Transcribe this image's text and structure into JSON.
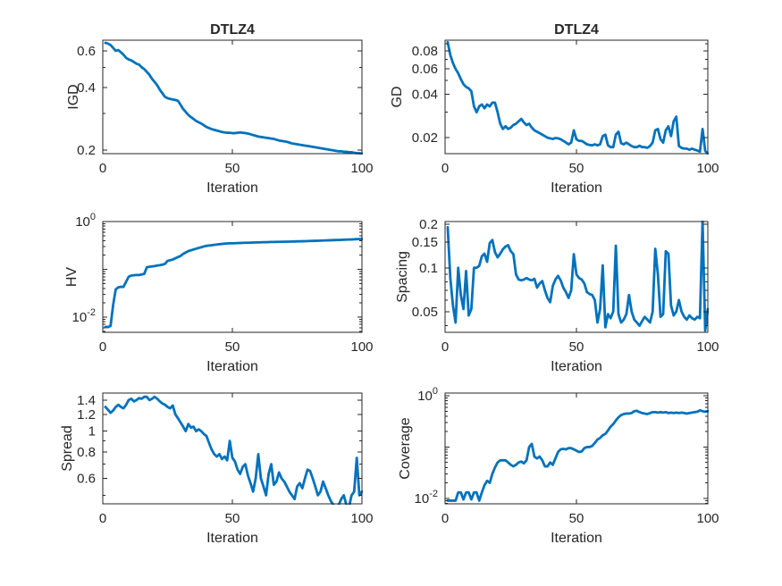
{
  "figure": {
    "background": "#ffffff",
    "line_color": "#0072BD",
    "axis_color": "#262626",
    "text_color": "#262626"
  },
  "iterations": [
    1,
    2,
    3,
    4,
    5,
    6,
    7,
    8,
    9,
    10,
    11,
    12,
    13,
    14,
    15,
    16,
    17,
    18,
    19,
    20,
    21,
    22,
    23,
    24,
    25,
    26,
    27,
    28,
    29,
    30,
    31,
    32,
    33,
    34,
    35,
    36,
    37,
    38,
    39,
    40,
    41,
    42,
    43,
    44,
    45,
    46,
    47,
    48,
    49,
    50,
    51,
    52,
    53,
    54,
    55,
    56,
    57,
    58,
    59,
    60,
    61,
    62,
    63,
    64,
    65,
    66,
    67,
    68,
    69,
    70,
    71,
    72,
    73,
    74,
    75,
    76,
    77,
    78,
    79,
    80,
    81,
    82,
    83,
    84,
    85,
    86,
    87,
    88,
    89,
    90,
    91,
    92,
    93,
    94,
    95,
    96,
    97,
    98,
    99,
    100
  ],
  "chart_data": [
    {
      "type": "line",
      "title": "DTLZ4",
      "xlabel": "Iteration",
      "ylabel": "IGD",
      "xlim": [
        0,
        100
      ],
      "ylim": [
        0.192,
        0.675
      ],
      "yscale": "log",
      "grid": false,
      "xticks": [
        0,
        50,
        100
      ],
      "yticks": [
        0.2,
        0.4,
        0.6
      ],
      "ytick_labels": [
        "0.2",
        "0.4",
        "0.6"
      ],
      "y": [
        0.655,
        0.65,
        0.64,
        0.62,
        0.6,
        0.605,
        0.59,
        0.575,
        0.555,
        0.545,
        0.54,
        0.53,
        0.52,
        0.515,
        0.5,
        0.49,
        0.475,
        0.46,
        0.44,
        0.425,
        0.41,
        0.39,
        0.375,
        0.36,
        0.355,
        0.352,
        0.35,
        0.348,
        0.345,
        0.33,
        0.315,
        0.305,
        0.295,
        0.288,
        0.282,
        0.276,
        0.272,
        0.268,
        0.263,
        0.258,
        0.255,
        0.252,
        0.25,
        0.248,
        0.246,
        0.244,
        0.243,
        0.242,
        0.242,
        0.241,
        0.241,
        0.242,
        0.243,
        0.242,
        0.241,
        0.24,
        0.238,
        0.236,
        0.234,
        0.232,
        0.231,
        0.23,
        0.229,
        0.228,
        0.227,
        0.226,
        0.224,
        0.222,
        0.221,
        0.22,
        0.219,
        0.217,
        0.215,
        0.214,
        0.213,
        0.212,
        0.211,
        0.21,
        0.209,
        0.208,
        0.207,
        0.206,
        0.205,
        0.204,
        0.203,
        0.202,
        0.201,
        0.2,
        0.199,
        0.198,
        0.197,
        0.197,
        0.196,
        0.196,
        0.195,
        0.195,
        0.194,
        0.193,
        0.193,
        0.192
      ]
    },
    {
      "type": "line",
      "title": "DTLZ4",
      "xlabel": "Iteration",
      "ylabel": "GD",
      "xlim": [
        0,
        100
      ],
      "ylim": [
        0.0155,
        0.095
      ],
      "yscale": "log",
      "grid": false,
      "xticks": [
        0,
        50,
        100
      ],
      "yticks": [
        0.02,
        0.04,
        0.06,
        0.08
      ],
      "ytick_labels": [
        "0.02",
        "0.04",
        "0.06",
        "0.08"
      ],
      "y": [
        0.092,
        0.075,
        0.066,
        0.06,
        0.056,
        0.051,
        0.047,
        0.045,
        0.044,
        0.042,
        0.033,
        0.03,
        0.033,
        0.034,
        0.032,
        0.034,
        0.033,
        0.035,
        0.035,
        0.03,
        0.025,
        0.023,
        0.024,
        0.023,
        0.0235,
        0.0245,
        0.025,
        0.026,
        0.027,
        0.0255,
        0.0245,
        0.025,
        0.0235,
        0.0225,
        0.022,
        0.0215,
        0.021,
        0.0205,
        0.02,
        0.0198,
        0.0196,
        0.0199,
        0.0198,
        0.0195,
        0.019,
        0.0185,
        0.018,
        0.0185,
        0.0225,
        0.0195,
        0.019,
        0.019,
        0.0185,
        0.018,
        0.0178,
        0.0177,
        0.018,
        0.0177,
        0.018,
        0.0205,
        0.021,
        0.0177,
        0.0172,
        0.0172,
        0.021,
        0.022,
        0.0183,
        0.018,
        0.0185,
        0.018,
        0.0175,
        0.0172,
        0.0172,
        0.0176,
        0.0172,
        0.0172,
        0.017,
        0.0175,
        0.0185,
        0.0225,
        0.023,
        0.0195,
        0.0185,
        0.0225,
        0.024,
        0.0205,
        0.026,
        0.028,
        0.0175,
        0.017,
        0.0168,
        0.0168,
        0.0165,
        0.0168,
        0.0165,
        0.0163,
        0.016,
        0.023,
        0.0162,
        0.0155
      ]
    },
    {
      "type": "line",
      "title": "",
      "xlabel": "Iteration",
      "ylabel": "HV",
      "xlim": [
        0,
        100
      ],
      "ylim": [
        0.0048,
        1.0
      ],
      "yscale": "log",
      "grid": false,
      "xticks": [
        0,
        50,
        100
      ],
      "yticks": [
        0.01,
        1
      ],
      "ytick_labels": [
        "10^-2",
        "10^0"
      ],
      "y": [
        0.0062,
        0.0062,
        0.0065,
        0.018,
        0.038,
        0.042,
        0.043,
        0.043,
        0.055,
        0.07,
        0.074,
        0.075,
        0.076,
        0.076,
        0.078,
        0.08,
        0.11,
        0.113,
        0.115,
        0.117,
        0.12,
        0.122,
        0.125,
        0.13,
        0.15,
        0.155,
        0.16,
        0.17,
        0.18,
        0.19,
        0.21,
        0.225,
        0.24,
        0.25,
        0.26,
        0.27,
        0.28,
        0.29,
        0.3,
        0.31,
        0.315,
        0.32,
        0.325,
        0.33,
        0.335,
        0.34,
        0.345,
        0.348,
        0.35,
        0.35,
        0.352,
        0.354,
        0.356,
        0.358,
        0.36,
        0.36,
        0.362,
        0.364,
        0.365,
        0.366,
        0.368,
        0.37,
        0.37,
        0.372,
        0.373,
        0.374,
        0.375,
        0.376,
        0.377,
        0.378,
        0.379,
        0.38,
        0.382,
        0.383,
        0.385,
        0.386,
        0.387,
        0.388,
        0.39,
        0.392,
        0.393,
        0.395,
        0.396,
        0.398,
        0.4,
        0.402,
        0.404,
        0.406,
        0.408,
        0.41,
        0.412,
        0.414,
        0.416,
        0.418,
        0.42,
        0.422,
        0.425,
        0.428,
        0.43,
        0.432
      ]
    },
    {
      "type": "line",
      "title": "",
      "xlabel": "Iteration",
      "ylabel": "Spacing",
      "xlim": [
        0,
        100
      ],
      "ylim": [
        0.036,
        0.208
      ],
      "yscale": "log",
      "grid": false,
      "xticks": [
        0,
        50,
        100
      ],
      "yticks": [
        0.05,
        0.1,
        0.15,
        0.2
      ],
      "ytick_labels": [
        "0.05",
        "0.1",
        "0.15",
        "0.2"
      ],
      "y": [
        0.19,
        0.085,
        0.055,
        0.042,
        0.1,
        0.065,
        0.052,
        0.095,
        0.047,
        0.052,
        0.1,
        0.1,
        0.103,
        0.12,
        0.125,
        0.11,
        0.148,
        0.155,
        0.128,
        0.118,
        0.125,
        0.134,
        0.14,
        0.143,
        0.13,
        0.124,
        0.09,
        0.083,
        0.082,
        0.083,
        0.085,
        0.083,
        0.082,
        0.084,
        0.073,
        0.078,
        0.081,
        0.07,
        0.062,
        0.058,
        0.075,
        0.083,
        0.088,
        0.082,
        0.073,
        0.068,
        0.062,
        0.07,
        0.124,
        0.09,
        0.085,
        0.083,
        0.078,
        0.068,
        0.066,
        0.065,
        0.06,
        0.042,
        0.052,
        0.104,
        0.039,
        0.048,
        0.045,
        0.05,
        0.142,
        0.048,
        0.042,
        0.044,
        0.048,
        0.065,
        0.05,
        0.044,
        0.042,
        0.04,
        0.043,
        0.046,
        0.044,
        0.042,
        0.05,
        0.135,
        0.09,
        0.046,
        0.048,
        0.13,
        0.125,
        0.055,
        0.047,
        0.05,
        0.06,
        0.05,
        0.046,
        0.044,
        0.047,
        0.045,
        0.044,
        0.046,
        0.045,
        0.21,
        0.037,
        0.052
      ]
    },
    {
      "type": "line",
      "title": "",
      "xlabel": "Iteration",
      "ylabel": "Spread",
      "xlim": [
        0,
        100
      ],
      "ylim": [
        0.456,
        1.51
      ],
      "yscale": "log",
      "grid": false,
      "xticks": [
        0,
        50,
        100
      ],
      "yticks": [
        0.6,
        0.8,
        1,
        1.2,
        1.4
      ],
      "ytick_labels": [
        "0.6",
        "0.8",
        "1",
        "1.2",
        "1.4"
      ],
      "y": [
        1.3,
        1.26,
        1.22,
        1.25,
        1.3,
        1.33,
        1.3,
        1.28,
        1.33,
        1.4,
        1.42,
        1.38,
        1.4,
        1.43,
        1.42,
        1.45,
        1.45,
        1.4,
        1.42,
        1.45,
        1.42,
        1.38,
        1.35,
        1.33,
        1.3,
        1.28,
        1.32,
        1.2,
        1.15,
        1.1,
        1.05,
        1.0,
        1.08,
        1.04,
        1.05,
        1.0,
        1.02,
        1.0,
        0.97,
        0.95,
        0.88,
        0.82,
        0.78,
        0.76,
        0.78,
        0.74,
        0.76,
        0.73,
        0.9,
        0.75,
        0.72,
        0.66,
        0.63,
        0.68,
        0.7,
        0.62,
        0.57,
        0.52,
        0.6,
        0.78,
        0.6,
        0.55,
        0.5,
        0.63,
        0.7,
        0.56,
        0.58,
        0.64,
        0.6,
        0.58,
        0.55,
        0.52,
        0.5,
        0.48,
        0.55,
        0.57,
        0.54,
        0.6,
        0.66,
        0.65,
        0.6,
        0.55,
        0.5,
        0.52,
        0.58,
        0.54,
        0.5,
        0.47,
        0.45,
        0.43,
        0.45,
        0.48,
        0.5,
        0.45,
        0.44,
        0.5,
        0.52,
        0.75,
        0.5,
        0.52
      ]
    },
    {
      "type": "line",
      "title": "",
      "xlabel": "Iteration",
      "ylabel": "Coverage",
      "xlim": [
        0,
        100
      ],
      "ylim": [
        0.0078,
        1.13
      ],
      "yscale": "log",
      "grid": false,
      "xticks": [
        0,
        50,
        100
      ],
      "yticks": [
        0.01,
        1
      ],
      "ytick_labels": [
        "10^-2",
        "10^0"
      ],
      "y": [
        0.009,
        0.009,
        0.009,
        0.009,
        0.013,
        0.013,
        0.0095,
        0.013,
        0.013,
        0.0095,
        0.013,
        0.013,
        0.009,
        0.013,
        0.018,
        0.022,
        0.02,
        0.03,
        0.04,
        0.05,
        0.055,
        0.055,
        0.055,
        0.05,
        0.045,
        0.042,
        0.045,
        0.05,
        0.052,
        0.048,
        0.055,
        0.1,
        0.115,
        0.065,
        0.06,
        0.065,
        0.055,
        0.042,
        0.042,
        0.05,
        0.045,
        0.06,
        0.08,
        0.09,
        0.092,
        0.09,
        0.095,
        0.095,
        0.09,
        0.085,
        0.08,
        0.082,
        0.095,
        0.1,
        0.1,
        0.105,
        0.12,
        0.14,
        0.15,
        0.17,
        0.18,
        0.21,
        0.25,
        0.28,
        0.33,
        0.38,
        0.42,
        0.44,
        0.45,
        0.45,
        0.46,
        0.5,
        0.51,
        0.48,
        0.46,
        0.45,
        0.44,
        0.46,
        0.48,
        0.48,
        0.47,
        0.48,
        0.47,
        0.48,
        0.46,
        0.47,
        0.46,
        0.47,
        0.46,
        0.47,
        0.46,
        0.45,
        0.46,
        0.47,
        0.48,
        0.49,
        0.52,
        0.5,
        0.49,
        0.5
      ]
    }
  ]
}
